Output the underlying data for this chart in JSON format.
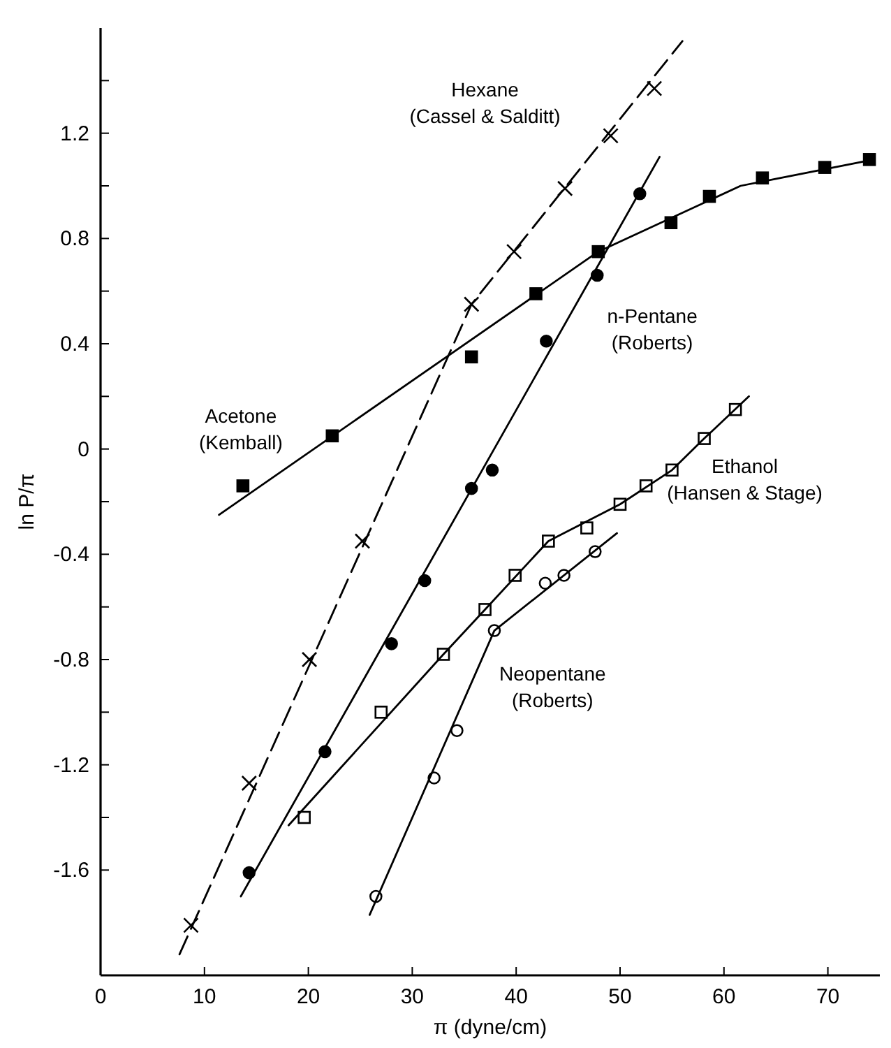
{
  "chart_data": {
    "type": "scatter",
    "xlabel": "π (dyne/cm)",
    "ylabel": "ln P/π",
    "xlim": [
      0,
      75
    ],
    "ylim": [
      -2.0,
      1.6
    ],
    "xticks": [
      0,
      10,
      20,
      30,
      40,
      50,
      60,
      70
    ],
    "yticks": [
      -1.6,
      {
        "value": -1.4,
        "label": null
      },
      -1.2,
      {
        "value": -1.0,
        "label": null
      },
      -0.8,
      {
        "value": -0.6,
        "label": null
      },
      -0.4,
      {
        "value": -0.2,
        "label": null
      },
      0,
      {
        "value": 0.2,
        "label": null
      },
      0.4,
      {
        "value": 0.6,
        "label": null
      },
      0.8,
      {
        "value": 1.0,
        "label": null
      },
      1.2,
      {
        "value": 1.4,
        "label": null
      }
    ],
    "grid": false,
    "series": [
      {
        "name": "Hexane (Cassel & Salditt)",
        "marker": "cross",
        "color": "#000000",
        "x": [
          8.7,
          14.3,
          20.1,
          25.2,
          35.7,
          39.8,
          44.7,
          49.1,
          53.3
        ],
        "values": [
          -1.81,
          -1.27,
          -0.8,
          -0.35,
          0.55,
          0.75,
          0.99,
          1.19,
          1.37
        ]
      },
      {
        "name": "Acetone (Kemball)",
        "marker": "square",
        "color": "#000000",
        "x": [
          13.7,
          22.3,
          35.7,
          41.9,
          47.9,
          54.9,
          58.6,
          63.7,
          69.7,
          74.0
        ],
        "values": [
          -0.14,
          0.05,
          0.35,
          0.59,
          0.75,
          0.86,
          0.96,
          1.03,
          1.07,
          1.1
        ]
      },
      {
        "name": "n-Pentane (Roberts)",
        "marker": "circle",
        "color": "#000000",
        "x": [
          14.3,
          21.6,
          28.0,
          31.2,
          35.7,
          37.7,
          42.9,
          47.8,
          51.9
        ],
        "values": [
          -1.61,
          -1.15,
          -0.74,
          -0.5,
          -0.15,
          -0.08,
          0.41,
          0.66,
          0.97
        ]
      },
      {
        "name": "Ethanol (Hansen & Stage)",
        "marker": "square",
        "color": "#000000",
        "x": [
          19.6,
          27.0,
          33.0,
          37.0,
          39.9,
          43.1,
          46.8,
          50.0,
          52.5,
          55.0,
          58.1,
          61.1
        ],
        "values": [
          -1.4,
          -1.0,
          -0.78,
          -0.61,
          -0.48,
          -0.35,
          -0.3,
          -0.21,
          -0.14,
          -0.08,
          0.04,
          0.15
        ]
      },
      {
        "name": "Neopentane (Roberts)",
        "marker": "circle",
        "color": "#000000",
        "x": [
          26.5,
          32.1,
          34.3,
          37.9,
          42.8,
          44.6,
          47.6
        ],
        "values": [
          -1.7,
          -1.25,
          -1.07,
          -0.69,
          -0.51,
          -0.48,
          -0.39
        ]
      },
      {
        "type": "line",
        "marker": "none",
        "line_style": "dashed",
        "color": "#000000",
        "x": [
          7.6,
          35.7,
          56.0
        ],
        "values": [
          -1.92,
          0.55,
          1.55
        ]
      },
      {
        "type": "line",
        "marker": "none",
        "line_style": "solid",
        "color": "#000000",
        "x": [
          11.4,
          47.9,
          61.6,
          74.4
        ],
        "values": [
          -0.25,
          0.75,
          1.0,
          1.1
        ]
      },
      {
        "type": "line",
        "marker": "none",
        "line_style": "solid",
        "color": "#000000",
        "x": [
          13.5,
          53.8
        ],
        "values": [
          -1.7,
          1.11
        ]
      },
      {
        "type": "line",
        "marker": "none",
        "line_style": "solid",
        "color": "#000000",
        "x": [
          18.1,
          33.0,
          37.0,
          43.1,
          50.0,
          55.0,
          58.1,
          62.4
        ],
        "values": [
          -1.43,
          -0.78,
          -0.61,
          -0.35,
          -0.21,
          -0.08,
          0.04,
          0.2
        ]
      },
      {
        "type": "line",
        "marker": "none",
        "line_style": "solid",
        "color": "#000000",
        "x": [
          25.9,
          37.9,
          49.7
        ],
        "values": [
          -1.77,
          -0.69,
          -0.32
        ]
      }
    ]
  }
}
